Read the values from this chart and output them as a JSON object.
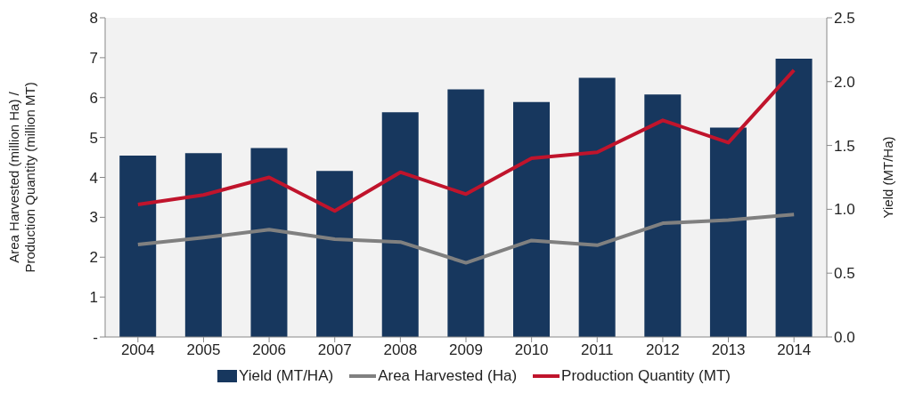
{
  "chart_data": {
    "type": "bar",
    "categories": [
      "2004",
      "2005",
      "2006",
      "2007",
      "2008",
      "2009",
      "2010",
      "2011",
      "2012",
      "2013",
      "2014"
    ],
    "ylabel": "Area Harvested (million Ha) /\nProduction Quantity (million MT)",
    "y2label": "Yield (MT/Ha)",
    "ylim": [
      0,
      8
    ],
    "yticks": [
      {
        "value": 0,
        "label": "-"
      },
      1,
      2,
      3,
      4,
      5,
      6,
      7,
      8
    ],
    "y2lim": [
      0,
      2.5
    ],
    "y2ticks": [
      {
        "value": 0,
        "label": "0.0"
      },
      {
        "value": 0.5,
        "label": "0.5"
      },
      {
        "value": 1,
        "label": "1.0"
      },
      {
        "value": 1.5,
        "label": "1.5"
      },
      {
        "value": 2,
        "label": "2.0"
      },
      {
        "value": 2.5,
        "label": "2.5"
      }
    ],
    "legend": "bottom",
    "series": [
      {
        "name": "Yield (MT/HA)",
        "axis": "y2",
        "color": "#17375e",
        "values": [
          1.42,
          1.44,
          1.48,
          1.3,
          1.76,
          1.94,
          1.84,
          2.03,
          1.9,
          1.64,
          2.18
        ]
      },
      {
        "name": "Area Harvested (Ha)",
        "type": "line",
        "color": "#808080",
        "values": [
          2.32,
          2.49,
          2.69,
          2.45,
          2.38,
          1.86,
          2.42,
          2.3,
          2.85,
          2.93,
          3.07
        ]
      },
      {
        "name": "Production Quantity (MT)",
        "type": "line",
        "color": "#c0142c",
        "values": [
          3.32,
          3.56,
          4.0,
          3.16,
          4.13,
          3.58,
          4.48,
          4.63,
          5.43,
          4.87,
          6.69
        ]
      }
    ]
  }
}
